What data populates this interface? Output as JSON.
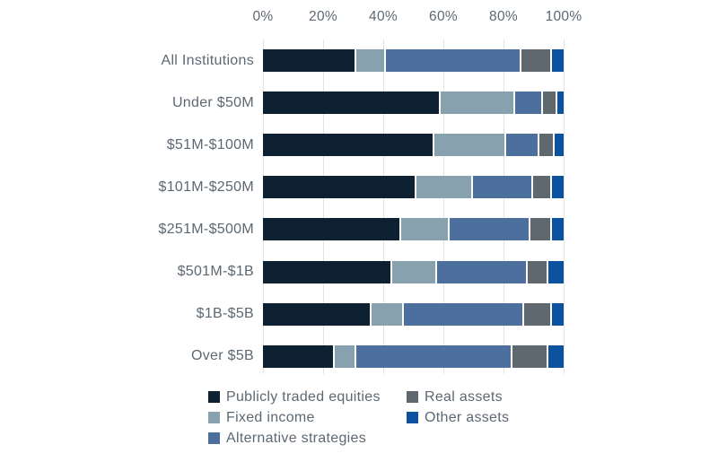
{
  "chart_data": {
    "type": "bar",
    "orientation": "horizontal",
    "stacked": true,
    "unit": "%",
    "categories": [
      "All Institutions",
      "Under $50M",
      "$51M-$100M",
      "$101M-$250M",
      "$251M-$500M",
      "$501M-$1B",
      "$1B-$5B",
      "Over $5B"
    ],
    "series": [
      {
        "name": "Publicly traded equities",
        "color": "#0d2133",
        "values": [
          31,
          59,
          57,
          51,
          46,
          43,
          36,
          24
        ]
      },
      {
        "name": "Fixed income",
        "color": "#87a1ae",
        "values": [
          10,
          25,
          24,
          19,
          16,
          15,
          11,
          7
        ]
      },
      {
        "name": "Alternative strategies",
        "color": "#4d6f9d",
        "values": [
          45,
          9,
          11,
          20,
          27,
          30,
          40,
          52
        ]
      },
      {
        "name": "Real assets",
        "color": "#5f686e",
        "values": [
          10,
          5,
          5,
          6,
          7,
          7,
          9,
          12
        ]
      },
      {
        "name": "Other assets",
        "color": "#0d529e",
        "values": [
          4,
          2,
          3,
          4,
          4,
          5,
          4,
          5
        ]
      }
    ],
    "x_axis": {
      "position": "top",
      "min": 0,
      "max": 100,
      "ticks": [
        "0%",
        "20%",
        "40%",
        "60%",
        "80%",
        "100%"
      ]
    },
    "grid": true,
    "gridline_color": "#e2e2e2",
    "text_color": "#5d6872",
    "background_color": "#ffffff",
    "legend_position": "bottom",
    "legend_columns": [
      "Publicly traded equities",
      "Fixed income",
      "Alternative strategies"
    ],
    "legend_columns_right": [
      "Real assets",
      "Other assets"
    ]
  }
}
